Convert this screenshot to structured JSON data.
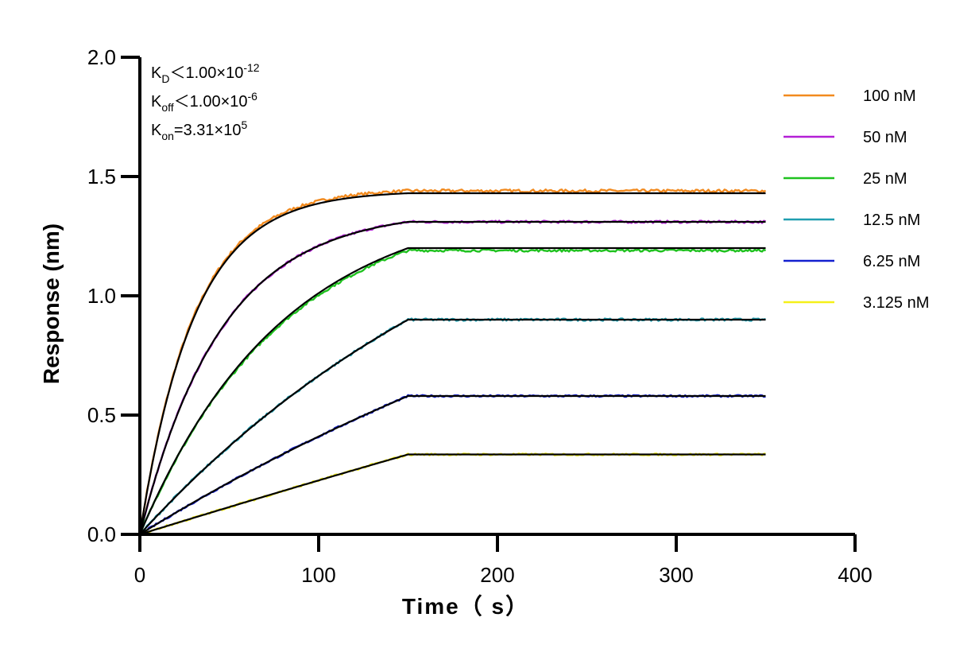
{
  "chart_data": {
    "type": "line",
    "xlabel": "Time（ s）",
    "ylabel": "Response (nm)",
    "xlim": [
      0,
      400
    ],
    "ylim": [
      0,
      2.0
    ],
    "x_ticks": [
      0,
      100,
      200,
      300,
      400
    ],
    "x_tick_labels": [
      "0",
      "100",
      "200",
      "300",
      "400"
    ],
    "y_ticks": [
      0,
      0.5,
      1.0,
      1.5,
      2.0
    ],
    "y_tick_labels": [
      "0.0",
      "0.5",
      "1.0",
      "1.5",
      "2.0"
    ],
    "grid": false,
    "legend_position": "right",
    "association_end_s": 150,
    "end_time_s": 350,
    "fit_line_color": "#000000",
    "annotations": [
      {
        "base": "K",
        "sub": "D",
        "rel": "＜",
        "value": "1.00×10",
        "exp": "-12"
      },
      {
        "base": "K",
        "sub": "off",
        "rel": "＜",
        "value": "1.00×10",
        "exp": "-6"
      },
      {
        "base": "K",
        "sub": "on",
        "rel": "=",
        "value": "3.31×10",
        "exp": "5"
      }
    ],
    "series": [
      {
        "name": "100 nM",
        "color": "#f28a1e",
        "plateau": 1.44,
        "fit_plateau": 1.43,
        "k_obs": 0.033,
        "noise": 0.006
      },
      {
        "name": "50 nM",
        "color": "#b31fd6",
        "plateau": 1.31,
        "fit_plateau": 1.31,
        "k_obs": 0.022,
        "noise": 0.005
      },
      {
        "name": "25 nM",
        "color": "#1fc21f",
        "plateau": 1.19,
        "fit_plateau": 1.2,
        "k_obs": 0.0125,
        "noise": 0.005
      },
      {
        "name": "12.5 nM",
        "color": "#1f9eb0",
        "plateau": 0.9,
        "fit_plateau": 0.9,
        "k_obs": 0.0045,
        "noise": 0.005
      },
      {
        "name": "6.25 nM",
        "color": "#1420d0",
        "plateau": 0.58,
        "fit_plateau": 0.58,
        "k_obs": 0.0025,
        "noise": 0.004
      },
      {
        "name": "3.125 nM",
        "color": "#f5f019",
        "plateau": 0.335,
        "fit_plateau": 0.335,
        "k_obs": 0.0005,
        "noise": 0.004
      }
    ]
  }
}
